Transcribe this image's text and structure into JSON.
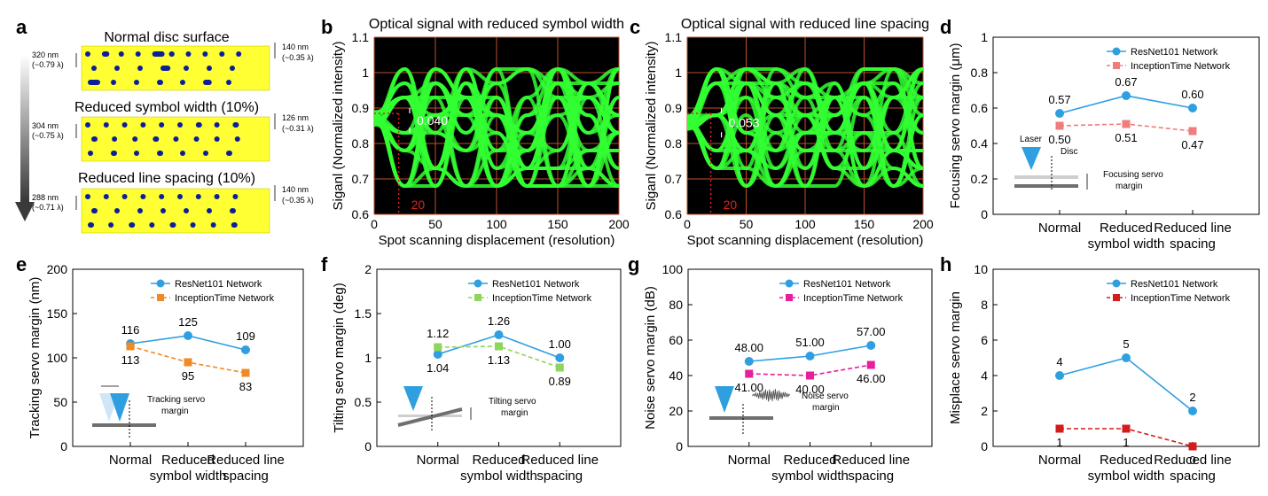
{
  "panel_labels": [
    "a",
    "b",
    "c",
    "d",
    "e",
    "f",
    "g",
    "h"
  ],
  "panel_a": {
    "discs": [
      {
        "title": "Normal disc surface",
        "left_dim": "320 nm",
        "left_dim2": "(~0.79 λ)",
        "right_dim": "140 nm",
        "right_dim2": "(~0.35 λ)",
        "rows": [
          [
            0.05,
            0.12,
            0.05,
            0.07,
            0.2,
            0.09,
            0.05,
            0.06,
            0.05,
            0.05
          ],
          [
            0.05,
            0.05,
            0.05,
            0.16,
            0.05,
            0.05,
            0.05
          ],
          [
            0.2,
            0.05,
            0.05,
            0.1,
            0.05,
            0.14,
            0.05
          ]
        ]
      },
      {
        "title": "Reduced symbol width (10%)",
        "left_dim": "304 nm",
        "left_dim2": "(~0.75 λ)",
        "right_dim": "126 nm",
        "right_dim2": "(~0.31 λ)",
        "rows": [
          [
            0.05,
            0.05,
            0.05,
            0.05,
            0.05,
            0.05,
            0.1,
            0.05,
            0.1
          ],
          [
            0.1,
            0.05,
            0.05,
            0.1,
            0.05,
            0.05,
            0.05,
            0.05
          ],
          [
            0.05,
            0.1,
            0.05,
            0.1,
            0.05,
            0.05,
            0.1
          ]
        ]
      },
      {
        "title": "Reduced line spacing (10%)",
        "left_dim": "288 nm",
        "left_dim2": "(~0.71 λ)",
        "right_dim": "140 nm",
        "right_dim2": "(~0.35 λ)",
        "rows": [
          [
            0.05,
            0.05,
            0.05,
            0.05,
            0.05,
            0.08,
            0.05,
            0.05,
            0.05
          ],
          [
            0.1,
            0.05,
            0.05,
            0.05,
            0.05,
            0.05,
            0.1
          ],
          [
            0.1,
            0.05,
            0.1,
            0.05,
            0.1,
            0.05,
            0.05,
            0.1
          ]
        ]
      }
    ]
  },
  "chart_data": [
    {
      "panel": "b",
      "type": "line",
      "title": "Optical signal with reduced symbol width",
      "xlabel": "Spot scanning displacement (resolution)",
      "ylabel": "Siganl (Normalized intensity)",
      "xlim": [
        0,
        200
      ],
      "ylim": [
        0.6,
        1.1
      ],
      "xticks": [
        "0",
        "50",
        "100",
        "150",
        "200"
      ],
      "yticks": [
        "0.6",
        "0.7",
        "0.8",
        "0.9",
        "1",
        "1.1"
      ],
      "annotations": [
        "0.040",
        "20"
      ],
      "marker_x": 20,
      "gap_y": [
        0.885,
        0.845
      ],
      "waveform_levels": [
        0.68,
        0.73,
        0.78,
        0.83,
        0.88,
        0.93,
        0.97,
        1.01
      ],
      "start_level": 0.87,
      "color": "#33ff33"
    },
    {
      "panel": "c",
      "type": "line",
      "title": "Optical signal with reduced line spacing",
      "xlabel": "Spot scanning displacement (resolution)",
      "ylabel": "Siganl (Normalized intensity)",
      "xlim": [
        0,
        200
      ],
      "ylim": [
        0.6,
        1.1
      ],
      "xticks": [
        "0",
        "50",
        "100",
        "150",
        "200"
      ],
      "yticks": [
        "0.6",
        "0.7",
        "0.8",
        "0.9",
        "1",
        "1.1"
      ],
      "annotations": [
        "0.053",
        "20"
      ],
      "marker_x": 20,
      "gap_y": [
        0.885,
        0.832
      ],
      "waveform_levels": [
        0.68,
        0.73,
        0.78,
        0.83,
        0.88,
        0.93,
        0.97,
        1.01
      ],
      "start_level": 0.86,
      "color": "#33ff33"
    },
    {
      "panel": "d",
      "type": "line",
      "categories": [
        "Normal",
        "Reduced symbol width",
        "Reduced line spacing"
      ],
      "ylabel": "Focusing servo margin (μm)",
      "ylim": [
        0,
        1
      ],
      "yticks": [
        "0",
        "0.2",
        "0.4",
        "0.6",
        "0.8",
        "1"
      ],
      "series": [
        {
          "name": "ResNet101 Network",
          "values": [
            0.57,
            0.67,
            0.6
          ],
          "labels": [
            "0.57",
            "0.67",
            "0.60"
          ],
          "color": "#2f9fe0",
          "dashed": false,
          "marker": "circle"
        },
        {
          "name": "InceptionTime Network",
          "values": [
            0.5,
            0.51,
            0.47
          ],
          "labels": [
            "0.50",
            "0.51",
            "0.47"
          ],
          "color": "#f07c7c",
          "dashed": true,
          "marker": "square"
        }
      ],
      "inset": {
        "kind": "focus",
        "texts": [
          "Laser",
          "Disc",
          "Focusing servo",
          "margin"
        ]
      }
    },
    {
      "panel": "e",
      "type": "line",
      "categories": [
        "Normal",
        "Reduced symbol width",
        "Reduced line spacing"
      ],
      "ylabel": "Tracking servo margin (nm)",
      "ylim": [
        0,
        200
      ],
      "yticks": [
        "0",
        "50",
        "100",
        "150",
        "200"
      ],
      "series": [
        {
          "name": "ResNet101 Network",
          "values": [
            116,
            125,
            109
          ],
          "labels": [
            "116",
            "125",
            "109"
          ],
          "color": "#2f9fe0",
          "dashed": false,
          "marker": "circle"
        },
        {
          "name": "InceptionTime Network",
          "values": [
            113,
            95,
            83
          ],
          "labels": [
            "113",
            "95",
            "83"
          ],
          "color": "#f08a24",
          "dashed": true,
          "marker": "square"
        }
      ],
      "inset": {
        "kind": "tracking",
        "texts": [
          "Tracking servo",
          "margin"
        ]
      }
    },
    {
      "panel": "f",
      "type": "line",
      "categories": [
        "Normal",
        "Reduced symbol width",
        "Reduced line spacing"
      ],
      "ylabel": "Tilting servo margin (deg)",
      "ylim": [
        0,
        2
      ],
      "yticks": [
        "0",
        "0.5",
        "1",
        "1.5",
        "2"
      ],
      "series": [
        {
          "name": "ResNet101 Network",
          "values": [
            1.04,
            1.26,
            1.0
          ],
          "labels": [
            "1.04",
            "1.26",
            "1.00"
          ],
          "color": "#2f9fe0",
          "dashed": false,
          "marker": "circle"
        },
        {
          "name": "InceptionTime Network",
          "values": [
            1.12,
            1.13,
            0.89
          ],
          "labels": [
            "1.12",
            "1.13",
            "0.89"
          ],
          "color": "#8fd45e",
          "dashed": true,
          "marker": "square"
        }
      ],
      "inset": {
        "kind": "tilt",
        "texts": [
          "Tilting servo",
          "margin"
        ]
      }
    },
    {
      "panel": "g",
      "type": "line",
      "categories": [
        "Normal",
        "Reduced symbol width",
        "Reduced line spacing"
      ],
      "ylabel": "Noise servo margin (dB)",
      "ylim": [
        0,
        100
      ],
      "yticks": [
        "0",
        "20",
        "40",
        "60",
        "80",
        "100"
      ],
      "series": [
        {
          "name": "ResNet101 Network",
          "values": [
            48,
            51,
            57
          ],
          "labels": [
            "48.00",
            "51.00",
            "57.00"
          ],
          "color": "#2f9fe0",
          "dashed": false,
          "marker": "circle"
        },
        {
          "name": "InceptionTime Network",
          "values": [
            41,
            40,
            46
          ],
          "labels": [
            "41.00",
            "40.00",
            "46.00"
          ],
          "color": "#e81f9c",
          "dashed": true,
          "marker": "square"
        }
      ],
      "inset": {
        "kind": "noise",
        "texts": [
          "Noise servo",
          "margin"
        ]
      }
    },
    {
      "panel": "h",
      "type": "line",
      "categories": [
        "Normal",
        "Reduced symbol width",
        "Reduced line spacing"
      ],
      "ylabel": "Misplace servo margin",
      "ylim": [
        0,
        10
      ],
      "yticks": [
        "0",
        "2",
        "4",
        "6",
        "8",
        "10"
      ],
      "series": [
        {
          "name": "ResNet101 Network",
          "values": [
            4,
            5,
            2
          ],
          "labels": [
            "4",
            "5",
            "2"
          ],
          "color": "#2f9fe0",
          "dashed": false,
          "marker": "circle"
        },
        {
          "name": "InceptionTime Network",
          "values": [
            1,
            1,
            0
          ],
          "labels": [
            "1",
            "1",
            "0"
          ],
          "color": "#d41c1c",
          "dashed": true,
          "marker": "square"
        }
      ],
      "inset": null
    }
  ],
  "category_lines": {
    "d": [
      [
        "Normal"
      ],
      [
        "Reduced",
        "symbol width"
      ],
      [
        "Reduced line",
        "spacing"
      ]
    ],
    "e": [
      [
        "Normal"
      ],
      [
        "Reduced",
        "symbol width"
      ],
      [
        "Reduced line",
        "spacing"
      ]
    ],
    "f": [
      [
        "Normal"
      ],
      [
        "Reduced",
        "symbol width"
      ],
      [
        "Reduced line",
        "spacing"
      ]
    ],
    "g": [
      [
        "Normal"
      ],
      [
        "Reduced",
        "symbol width"
      ],
      [
        "Reduced line",
        "spacing"
      ]
    ],
    "h": [
      [
        "Normal"
      ],
      [
        "Reduced",
        "symbol width"
      ],
      [
        "Reduced line",
        "spacing"
      ]
    ]
  }
}
